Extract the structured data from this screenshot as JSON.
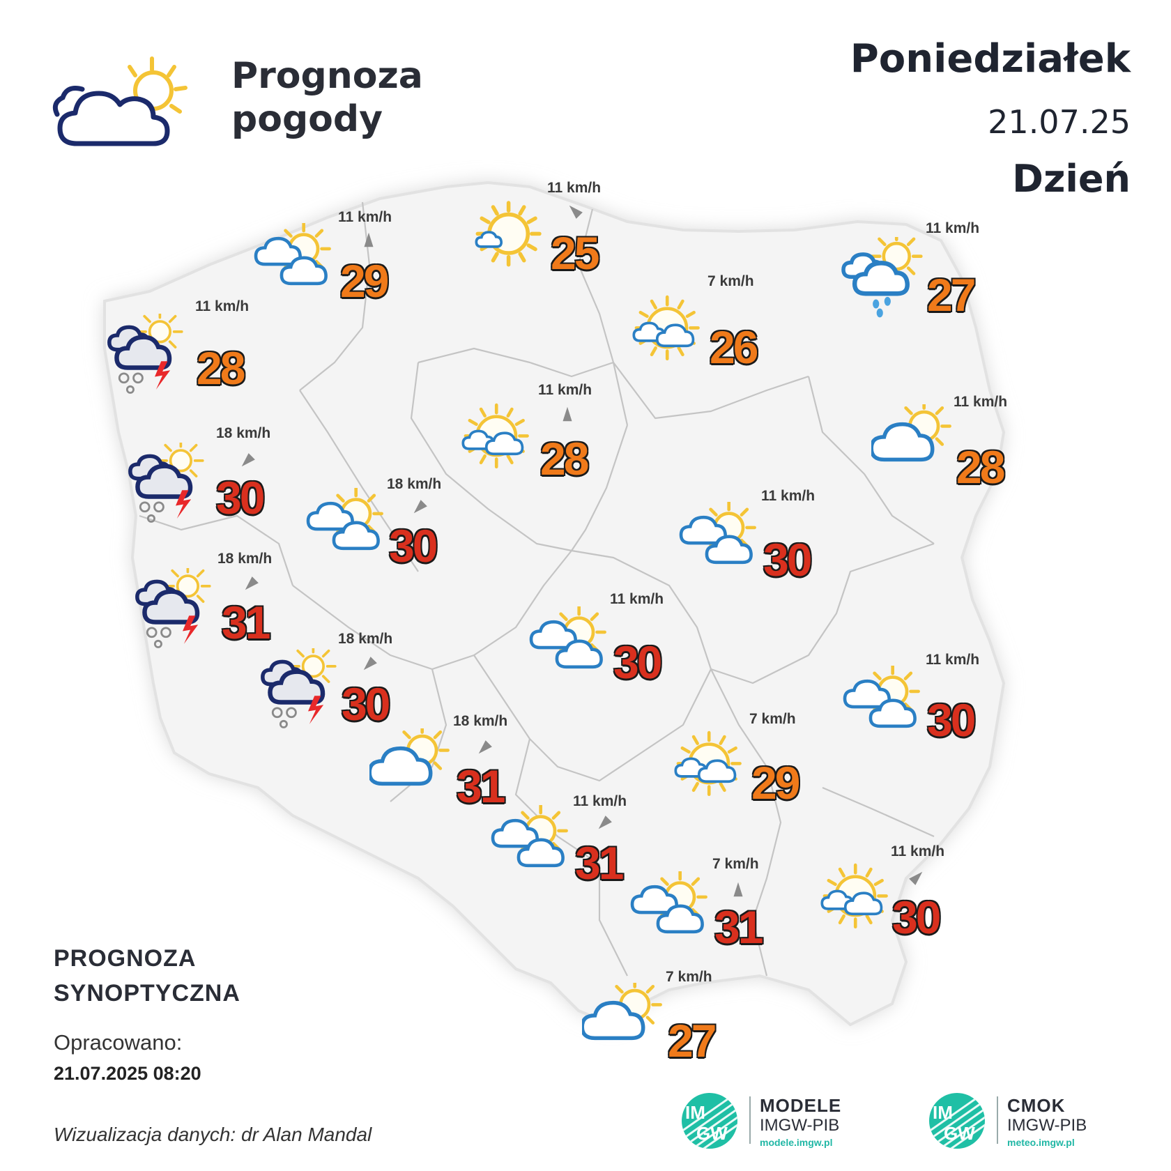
{
  "header": {
    "title_line1": "Prognoza",
    "title_line2": "pogody",
    "day_name": "Poniedziałek",
    "date": "21.07.25",
    "period": "Dzień"
  },
  "footer": {
    "forecast_type_line1": "PROGNOZA",
    "forecast_type_line2": "SYNOPTYCZNA",
    "prepared_label": "Opracowano:",
    "prepared_datetime": "21.07.2025 08:20",
    "credit": "Wizualizacja danych: dr Alan Mandal"
  },
  "logos": [
    {
      "line1": "MODELE",
      "line2": "IMGW-PIB",
      "url": "modele.imgw.pl",
      "mark": "IM GW"
    },
    {
      "line1": "CMOK",
      "line2": "IMGW-PIB",
      "url": "meteo.imgw.pl",
      "mark": "IM GW"
    }
  ],
  "colors": {
    "temp_warm": "#f07a1a",
    "temp_hot": "#d9301e",
    "cloud_outline": "#2a7fc4",
    "storm_cloud_outline": "#1b2a6b",
    "sun": "#f4c436",
    "lightning": "#e8282a",
    "rain_drops": "#4aa3e0",
    "map_fill": "#f4f4f4",
    "wind_arrow": "#8a8a8a"
  },
  "stations": [
    {
      "icon": "sun-with-small-cloud",
      "temp": "25",
      "wind": "11 km/h",
      "wind_dir": 225
    },
    {
      "icon": "cloud-with-sun",
      "temp": "29",
      "wind": "11 km/h",
      "wind_dir": 270
    },
    {
      "icon": "storm-cloud-hail-lightning",
      "temp": "28",
      "wind": "11 km/h",
      "wind_dir": 0
    },
    {
      "icon": "sun-with-clouds",
      "temp": "26",
      "wind": "7 km/h",
      "wind_dir": 0
    },
    {
      "icon": "cloud-rain-with-sun",
      "temp": "27",
      "wind": "11 km/h",
      "wind_dir": 0
    },
    {
      "icon": "sun-with-clouds",
      "temp": "28",
      "wind": "11 km/h",
      "wind_dir": 270
    },
    {
      "icon": "single-cloud-with-sun",
      "temp": "28",
      "wind": "11 km/h",
      "wind_dir": 0
    },
    {
      "icon": "storm-cloud-hail-lightning",
      "temp": "30",
      "wind": "18 km/h",
      "wind_dir": 135
    },
    {
      "icon": "cloud-with-sun",
      "temp": "30",
      "wind": "18 km/h",
      "wind_dir": 135
    },
    {
      "icon": "cloud-with-sun",
      "temp": "30",
      "wind": "11 km/h",
      "wind_dir": 0
    },
    {
      "icon": "storm-cloud-hail-lightning",
      "temp": "31",
      "wind": "18 km/h",
      "wind_dir": 135
    },
    {
      "icon": "cloud-with-sun",
      "temp": "30",
      "wind": "11 km/h",
      "wind_dir": 0
    },
    {
      "icon": "storm-cloud-hail-lightning",
      "temp": "30",
      "wind": "18 km/h",
      "wind_dir": 135
    },
    {
      "icon": "cloud-with-sun",
      "temp": "30",
      "wind": "11 km/h",
      "wind_dir": 0
    },
    {
      "icon": "single-cloud-with-sun",
      "temp": "31",
      "wind": "18 km/h",
      "wind_dir": 135
    },
    {
      "icon": "sun-with-clouds",
      "temp": "29",
      "wind": "7 km/h",
      "wind_dir": 0
    },
    {
      "icon": "cloud-with-sun",
      "temp": "31",
      "wind": "11 km/h",
      "wind_dir": 135
    },
    {
      "icon": "cloud-with-sun",
      "temp": "31",
      "wind": "7 km/h",
      "wind_dir": 270
    },
    {
      "icon": "sun-with-clouds",
      "temp": "30",
      "wind": "11 km/h",
      "wind_dir": 315
    },
    {
      "icon": "single-cloud-with-sun",
      "temp": "27",
      "wind": "7 km/h",
      "wind_dir": 0
    }
  ]
}
